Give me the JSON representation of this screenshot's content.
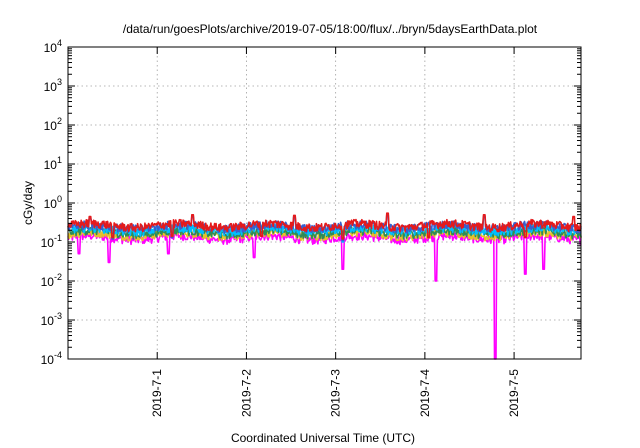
{
  "chart_data": {
    "type": "line",
    "title": "/data/run/goesPlots/archive/2019-07-05/18:00/flux/../bryn/5daysEarthData.plot",
    "xlabel": "Coordinated Universal Time (UTC)",
    "ylabel": "cGy/day",
    "yscale": "log",
    "ylim": [
      0.0001,
      10000
    ],
    "y_ticks": [
      {
        "value": 0.0001,
        "base": "10",
        "exp": "-4"
      },
      {
        "value": 0.001,
        "base": "10",
        "exp": "-3"
      },
      {
        "value": 0.01,
        "base": "10",
        "exp": "-2"
      },
      {
        "value": 0.1,
        "base": "10",
        "exp": "-1"
      },
      {
        "value": 1,
        "base": "10",
        "exp": "0"
      },
      {
        "value": 10,
        "base": "10",
        "exp": "1"
      },
      {
        "value": 100,
        "base": "10",
        "exp": "2"
      },
      {
        "value": 1000,
        "base": "10",
        "exp": "3"
      },
      {
        "value": 10000,
        "base": "10",
        "exp": "4"
      }
    ],
    "xlim": [
      "2019-06-30 00:00",
      "2019-07-05 18:00"
    ],
    "x_ticks": [
      "2019-7-1",
      "2019-7-2",
      "2019-7-3",
      "2019-7-4",
      "2019-7-5"
    ],
    "x_tick_dates": [
      "2019-07-01",
      "2019-07-02",
      "2019-07-03",
      "2019-07-04",
      "2019-07-05"
    ],
    "grid": true,
    "series": [
      {
        "color": "#e41a1c",
        "baseline": 0.27,
        "spikes": [
          {
            "t": "2019-06-30 06:00",
            "y": 0.45
          },
          {
            "t": "2019-07-01 09:30",
            "y": 0.5
          },
          {
            "t": "2019-07-02 13:00",
            "y": 0.48
          },
          {
            "t": "2019-07-03 14:00",
            "y": 0.55
          },
          {
            "t": "2019-07-04 16:00",
            "y": 0.5
          },
          {
            "t": "2019-07-05 16:00",
            "y": 0.45
          }
        ],
        "dips": [
          {
            "t": "2019-06-30 12:00",
            "y": 0.13
          },
          {
            "t": "2019-07-01 04:00",
            "y": 0.14
          },
          {
            "t": "2019-07-02 04:00",
            "y": 0.14
          },
          {
            "t": "2019-07-03 02:00",
            "y": 0.12
          },
          {
            "t": "2019-07-04 01:00",
            "y": 0.13
          },
          {
            "t": "2019-07-05 03:00",
            "y": 0.13
          }
        ]
      },
      {
        "color": "#3a5fcd",
        "baseline": 0.25,
        "spikes": [
          {
            "t": "2019-06-30 06:00",
            "y": 0.4
          },
          {
            "t": "2019-07-01 09:30",
            "y": 0.45
          },
          {
            "t": "2019-07-02 13:00",
            "y": 0.45
          },
          {
            "t": "2019-07-03 14:00",
            "y": 0.5
          },
          {
            "t": "2019-07-04 16:00",
            "y": 0.45
          }
        ],
        "dips": [
          {
            "t": "2019-06-30 12:00",
            "y": 0.12
          },
          {
            "t": "2019-07-01 04:00",
            "y": 0.13
          },
          {
            "t": "2019-07-03 02:00",
            "y": 0.11
          }
        ]
      },
      {
        "color": "#00bfff",
        "baseline": 0.21,
        "spikes": [],
        "dips": [
          {
            "t": "2019-07-03 02:00",
            "y": 0.1
          }
        ]
      },
      {
        "color": "#2e8b57",
        "baseline": 0.18,
        "spikes": [],
        "dips": []
      },
      {
        "color": "#e6c229",
        "baseline": 0.16,
        "spikes": [],
        "dips": []
      },
      {
        "color": "#ff00ff",
        "baseline": 0.13,
        "spikes": [],
        "dips": [
          {
            "t": "2019-06-30 03:00",
            "y": 0.05
          },
          {
            "t": "2019-06-30 11:00",
            "y": 0.03
          },
          {
            "t": "2019-07-01 03:00",
            "y": 0.05
          },
          {
            "t": "2019-07-02 02:00",
            "y": 0.04
          },
          {
            "t": "2019-07-03 02:00",
            "y": 0.02
          },
          {
            "t": "2019-07-04 03:00",
            "y": 0.01
          },
          {
            "t": "2019-07-04 19:00",
            "y": 0.0001
          },
          {
            "t": "2019-07-05 03:00",
            "y": 0.015
          },
          {
            "t": "2019-07-05 08:00",
            "y": 0.02
          }
        ]
      }
    ]
  }
}
